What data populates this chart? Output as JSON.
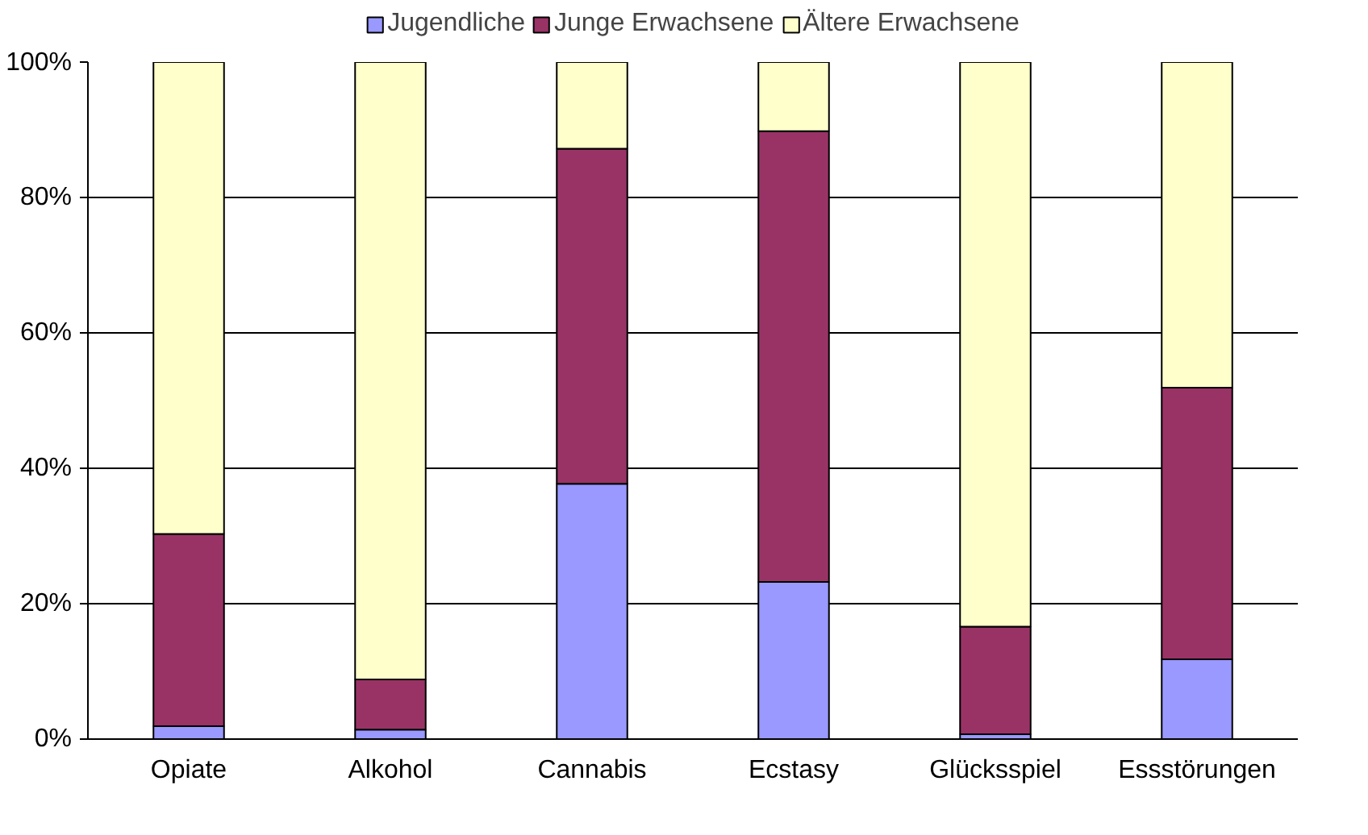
{
  "chart_data": {
    "type": "bar",
    "stacked": true,
    "categories": [
      "Opiate",
      "Alkohol",
      "Cannabis",
      "Ecstasy",
      "Glücksspiel",
      "Essstörungen"
    ],
    "series": [
      {
        "name": "Jugendliche",
        "color": "#9999ff",
        "values": [
          1.9,
          1.4,
          37.7,
          23.2,
          0.7,
          11.8
        ]
      },
      {
        "name": "Junge Erwachsene",
        "color": "#993366",
        "values": [
          28.4,
          7.4,
          49.5,
          66.6,
          15.9,
          40.1
        ]
      },
      {
        "name": "Ältere Erwachsene",
        "color": "#ffffcc",
        "values": [
          69.7,
          91.2,
          12.8,
          10.2,
          83.4,
          48.1
        ]
      }
    ],
    "ylim": [
      0,
      100
    ],
    "yticks": [
      {
        "value": 0,
        "label": "0%"
      },
      {
        "value": 20,
        "label": "20%"
      },
      {
        "value": 40,
        "label": "40%"
      },
      {
        "value": 60,
        "label": "60%"
      },
      {
        "value": 80,
        "label": "80%"
      },
      {
        "value": 100,
        "label": "100%"
      }
    ],
    "grid": "y",
    "legend": "top"
  }
}
